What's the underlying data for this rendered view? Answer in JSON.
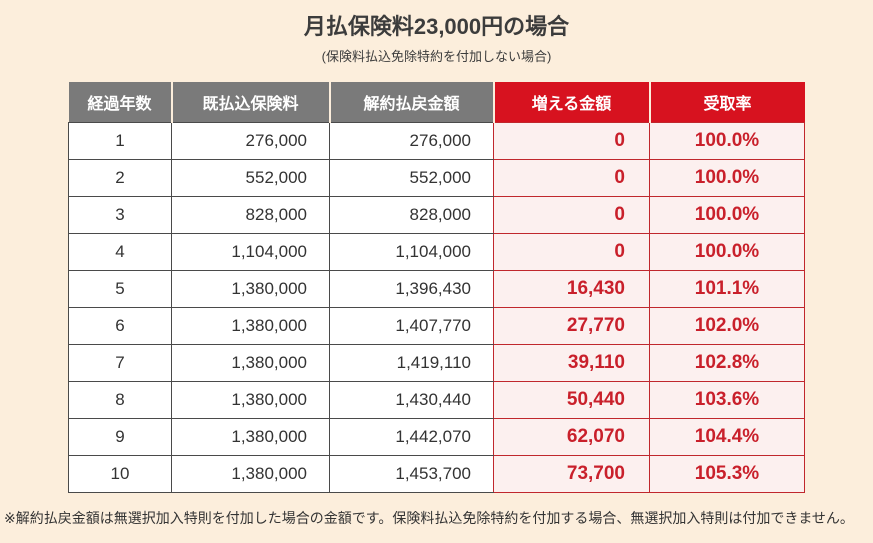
{
  "title": "月払保険料23,000円の場合",
  "subtitle": "(保険料払込免除特約を付加しない場合)",
  "footnote": "※解約払戻金額は無選択加入特則を付加した場合の金額です。保険料払込免除特約を付加する場合、無選択加入特則は付加できません。",
  "colors": {
    "background": "#FCEEDC",
    "header_gray": "#7A7A7A",
    "header_red": "#D7121F",
    "cell_pink": "#FCF0EF",
    "value_red": "#C9202B",
    "border_dark": "#4A4A4A",
    "border_red": "#C0272D"
  },
  "chart_data": {
    "type": "table",
    "title": "月払保険料23,000円の場合",
    "subtitle": "(保険料払込免除特約を付加しない場合)",
    "columns": [
      "経過年数",
      "既払込保険料",
      "解約払戻金額",
      "増える金額",
      "受取率"
    ],
    "rows": [
      [
        "1",
        "276,000",
        "276,000",
        "0",
        "100.0%"
      ],
      [
        "2",
        "552,000",
        "552,000",
        "0",
        "100.0%"
      ],
      [
        "3",
        "828,000",
        "828,000",
        "0",
        "100.0%"
      ],
      [
        "4",
        "1,104,000",
        "1,104,000",
        "0",
        "100.0%"
      ],
      [
        "5",
        "1,380,000",
        "1,396,430",
        "16,430",
        "101.1%"
      ],
      [
        "6",
        "1,380,000",
        "1,407,770",
        "27,770",
        "102.0%"
      ],
      [
        "7",
        "1,380,000",
        "1,419,110",
        "39,110",
        "102.8%"
      ],
      [
        "8",
        "1,380,000",
        "1,430,440",
        "50,440",
        "103.6%"
      ],
      [
        "9",
        "1,380,000",
        "1,442,070",
        "62,070",
        "104.4%"
      ],
      [
        "10",
        "1,380,000",
        "1,453,700",
        "73,700",
        "105.3%"
      ]
    ],
    "footnote": "※解約払戻金額は無選択加入特則を付加した場合の金額です。保険料払込免除特約を付加する場合、無選択加入特則は付加できません。"
  }
}
